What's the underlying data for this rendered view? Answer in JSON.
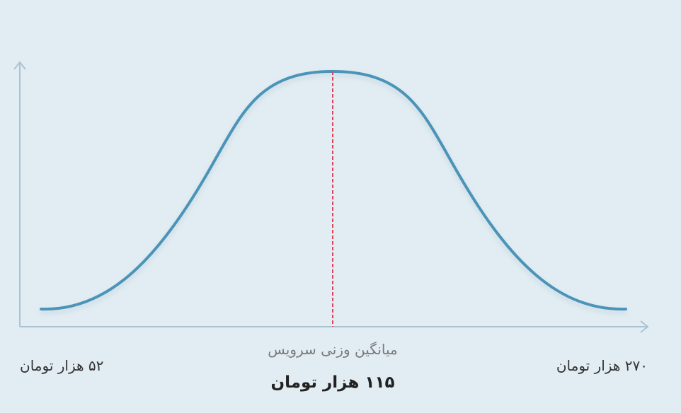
{
  "labels": {
    "min": "۵۲ هزار تومان",
    "max": "۲۷۰ هزار تومان",
    "mean_title": "میانگین وزنی سرویس",
    "mean_value": "۱۱۵ هزار تومان"
  }
}
